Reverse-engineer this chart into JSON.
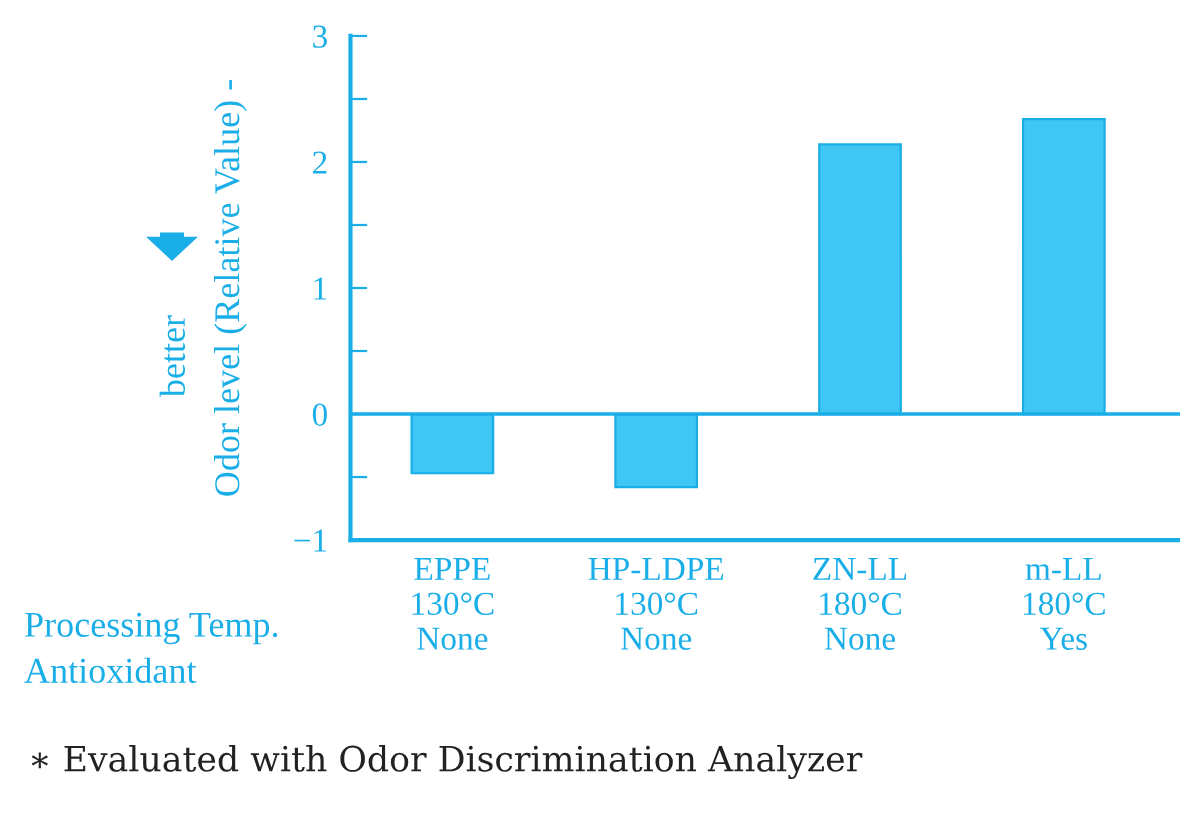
{
  "chart_data": {
    "type": "bar",
    "ylabel": "Odor level (Relative Value) -",
    "categories": [
      "EPPE\n130°C\nNone",
      "HP-LDPE\n130°C\nNone",
      "ZN-LL\n180°C\nNone",
      "m-LL\n180°C\nYes"
    ],
    "values": [
      -0.47,
      -0.58,
      2.14,
      2.34
    ],
    "color": "#40c6f2",
    "ylim": [
      -1,
      3
    ],
    "yticks": [
      {
        "value": -1,
        "label": "−1"
      },
      {
        "value": -0.5,
        "label": null
      },
      0,
      {
        "value": 0.5,
        "label": null
      },
      1,
      {
        "value": 1.5,
        "label": null
      },
      2,
      {
        "value": 2.5,
        "label": null
      },
      3
    ],
    "ref_lines": [
      {
        "axis": "y",
        "value": 0,
        "color": "#1aaee8"
      }
    ],
    "grid": false,
    "annotations": [
      "better",
      "Processing Temp.",
      "Antioxidant",
      "∗ Evaluated with Odor Discrimination Analyzer"
    ]
  }
}
